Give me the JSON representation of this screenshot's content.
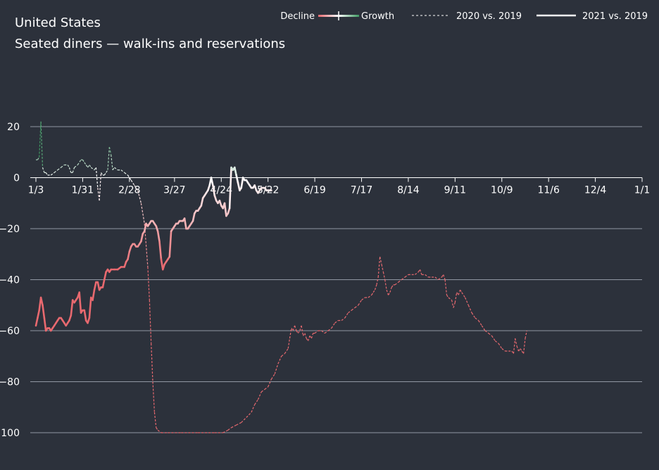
{
  "header": {
    "title": "United States",
    "subtitle": "Seated diners — walk-ins and reservations"
  },
  "legend": {
    "decline_label": "Decline",
    "growth_label": "Growth",
    "series_2020_label": "2020 vs. 2019",
    "series_2021_label": "2021 vs. 2019",
    "placement": "top-right"
  },
  "colors": {
    "background": "#2c313b",
    "grid": "#9097a3",
    "decline": "#e8696f",
    "neutral": "#ffffff",
    "growth": "#3e9a62"
  },
  "chart_data": {
    "type": "line",
    "title": "United States",
    "subtitle": "Seated diners — walk-ins and reservations",
    "xlabel": "",
    "ylabel": "",
    "x_unit": "day of year",
    "x_ticks": [
      {
        "label": "1/3",
        "day": 3
      },
      {
        "label": "1/31",
        "day": 31
      },
      {
        "label": "2/28",
        "day": 59
      },
      {
        "label": "3/27",
        "day": 86
      },
      {
        "label": "4/24",
        "day": 114
      },
      {
        "label": "5/22",
        "day": 142
      },
      {
        "label": "6/19",
        "day": 170
      },
      {
        "label": "7/17",
        "day": 198
      },
      {
        "label": "8/14",
        "day": 226
      },
      {
        "label": "9/11",
        "day": 254
      },
      {
        "label": "10/9",
        "day": 282
      },
      {
        "label": "11/6",
        "day": 310
      },
      {
        "label": "12/4",
        "day": 338
      },
      {
        "label": "1/1",
        "day": 366
      }
    ],
    "xlim": [
      3,
      366
    ],
    "y_ticks": [
      20,
      0,
      -20,
      -40,
      -60,
      -80,
      -100
    ],
    "ylim": [
      -100,
      20
    ],
    "grid": true,
    "color_scale": {
      "negative": "Decline",
      "positive": "Growth"
    },
    "series": [
      {
        "name": "2020 vs. 2019",
        "style": "dashed",
        "points": [
          [
            3,
            7
          ],
          [
            4,
            7
          ],
          [
            5,
            8
          ],
          [
            6,
            22
          ],
          [
            7,
            4
          ],
          [
            8,
            2
          ],
          [
            9,
            2
          ],
          [
            10,
            1
          ],
          [
            12,
            1
          ],
          [
            14,
            2
          ],
          [
            16,
            3
          ],
          [
            18,
            4
          ],
          [
            20,
            5
          ],
          [
            22,
            5
          ],
          [
            23,
            4
          ],
          [
            24,
            2
          ],
          [
            25,
            2
          ],
          [
            26,
            4
          ],
          [
            28,
            5
          ],
          [
            30,
            7
          ],
          [
            31,
            7
          ],
          [
            32,
            6
          ],
          [
            33,
            5
          ],
          [
            34,
            4
          ],
          [
            35,
            5
          ],
          [
            36,
            4
          ],
          [
            38,
            3
          ],
          [
            39,
            4
          ],
          [
            40,
            -4
          ],
          [
            41,
            -9
          ],
          [
            42,
            2
          ],
          [
            43,
            1
          ],
          [
            44,
            1
          ],
          [
            45,
            2
          ],
          [
            46,
            3
          ],
          [
            47,
            12
          ],
          [
            48,
            9
          ],
          [
            49,
            3
          ],
          [
            50,
            4
          ],
          [
            52,
            3
          ],
          [
            54,
            3
          ],
          [
            56,
            2
          ],
          [
            58,
            1
          ],
          [
            60,
            -1
          ],
          [
            62,
            -3
          ],
          [
            64,
            -5
          ],
          [
            66,
            -10
          ],
          [
            68,
            -18
          ],
          [
            70,
            -35
          ],
          [
            71,
            -48
          ],
          [
            72,
            -65
          ],
          [
            73,
            -80
          ],
          [
            74,
            -92
          ],
          [
            75,
            -98
          ],
          [
            76,
            -99
          ],
          [
            78,
            -100
          ],
          [
            82,
            -100
          ],
          [
            90,
            -100
          ],
          [
            100,
            -100
          ],
          [
            110,
            -100
          ],
          [
            115,
            -100
          ],
          [
            118,
            -99
          ],
          [
            120,
            -98
          ],
          [
            123,
            -97
          ],
          [
            126,
            -96
          ],
          [
            129,
            -94
          ],
          [
            132,
            -92
          ],
          [
            134,
            -89
          ],
          [
            136,
            -87
          ],
          [
            138,
            -84
          ],
          [
            140,
            -83
          ],
          [
            142,
            -82
          ],
          [
            144,
            -79
          ],
          [
            146,
            -77
          ],
          [
            148,
            -73
          ],
          [
            150,
            -70
          ],
          [
            152,
            -69
          ],
          [
            154,
            -67
          ],
          [
            155,
            -63
          ],
          [
            156,
            -59
          ],
          [
            157,
            -60
          ],
          [
            158,
            -58
          ],
          [
            159,
            -60
          ],
          [
            160,
            -61
          ],
          [
            161,
            -60
          ],
          [
            162,
            -58
          ],
          [
            163,
            -62
          ],
          [
            164,
            -61
          ],
          [
            165,
            -63
          ],
          [
            166,
            -64
          ],
          [
            167,
            -62
          ],
          [
            168,
            -63
          ],
          [
            169,
            -61
          ],
          [
            170,
            -61
          ],
          [
            172,
            -60
          ],
          [
            174,
            -60
          ],
          [
            176,
            -61
          ],
          [
            178,
            -60
          ],
          [
            180,
            -59
          ],
          [
            182,
            -57
          ],
          [
            184,
            -56
          ],
          [
            186,
            -56
          ],
          [
            188,
            -55
          ],
          [
            190,
            -53
          ],
          [
            192,
            -52
          ],
          [
            194,
            -51
          ],
          [
            196,
            -50
          ],
          [
            198,
            -48
          ],
          [
            200,
            -47
          ],
          [
            202,
            -47
          ],
          [
            204,
            -46
          ],
          [
            205,
            -45
          ],
          [
            206,
            -44
          ],
          [
            207,
            -42
          ],
          [
            208,
            -39
          ],
          [
            209,
            -31
          ],
          [
            210,
            -34
          ],
          [
            211,
            -37
          ],
          [
            212,
            -40
          ],
          [
            213,
            -44
          ],
          [
            214,
            -46
          ],
          [
            215,
            -45
          ],
          [
            216,
            -43
          ],
          [
            217,
            -42
          ],
          [
            218,
            -42
          ],
          [
            220,
            -41
          ],
          [
            222,
            -40
          ],
          [
            224,
            -39
          ],
          [
            226,
            -38
          ],
          [
            228,
            -38
          ],
          [
            230,
            -38
          ],
          [
            232,
            -37
          ],
          [
            233,
            -36
          ],
          [
            234,
            -38
          ],
          [
            236,
            -38
          ],
          [
            238,
            -39
          ],
          [
            240,
            -39
          ],
          [
            242,
            -39
          ],
          [
            244,
            -40
          ],
          [
            246,
            -39
          ],
          [
            247,
            -38
          ],
          [
            248,
            -40
          ],
          [
            249,
            -46
          ],
          [
            250,
            -47
          ],
          [
            252,
            -48
          ],
          [
            253,
            -51
          ],
          [
            254,
            -49
          ],
          [
            255,
            -45
          ],
          [
            256,
            -46
          ],
          [
            257,
            -44
          ],
          [
            258,
            -45
          ],
          [
            260,
            -47
          ],
          [
            262,
            -50
          ],
          [
            264,
            -53
          ],
          [
            266,
            -55
          ],
          [
            268,
            -56
          ],
          [
            270,
            -58
          ],
          [
            272,
            -60
          ],
          [
            274,
            -61
          ],
          [
            276,
            -62
          ],
          [
            278,
            -64
          ],
          [
            280,
            -65
          ],
          [
            282,
            -67
          ],
          [
            284,
            -68
          ],
          [
            286,
            -68
          ],
          [
            288,
            -68
          ],
          [
            289,
            -69
          ],
          [
            290,
            -63
          ],
          [
            291,
            -66
          ],
          [
            292,
            -68
          ],
          [
            293,
            -67
          ],
          [
            294,
            -68
          ],
          [
            295,
            -69
          ],
          [
            296,
            -63
          ],
          [
            297,
            -60
          ]
        ]
      },
      {
        "name": "2021 vs. 2019",
        "style": "solid",
        "points": [
          [
            3,
            -58
          ],
          [
            4,
            -55
          ],
          [
            5,
            -52
          ],
          [
            6,
            -47
          ],
          [
            7,
            -50
          ],
          [
            8,
            -55
          ],
          [
            9,
            -60
          ],
          [
            10,
            -59
          ],
          [
            11,
            -59
          ],
          [
            12,
            -60
          ],
          [
            13,
            -59
          ],
          [
            14,
            -58
          ],
          [
            15,
            -57
          ],
          [
            16,
            -56
          ],
          [
            17,
            -55
          ],
          [
            18,
            -55
          ],
          [
            19,
            -56
          ],
          [
            20,
            -57
          ],
          [
            21,
            -58
          ],
          [
            22,
            -57
          ],
          [
            23,
            -56
          ],
          [
            24,
            -54
          ],
          [
            25,
            -48
          ],
          [
            26,
            -49
          ],
          [
            27,
            -48
          ],
          [
            28,
            -47
          ],
          [
            29,
            -45
          ],
          [
            30,
            -53
          ],
          [
            31,
            -52
          ],
          [
            32,
            -52
          ],
          [
            33,
            -56
          ],
          [
            34,
            -57
          ],
          [
            35,
            -55
          ],
          [
            36,
            -47
          ],
          [
            37,
            -48
          ],
          [
            38,
            -44
          ],
          [
            39,
            -41
          ],
          [
            40,
            -41
          ],
          [
            41,
            -44
          ],
          [
            42,
            -43
          ],
          [
            43,
            -43
          ],
          [
            44,
            -40
          ],
          [
            45,
            -37
          ],
          [
            46,
            -36
          ],
          [
            47,
            -37
          ],
          [
            48,
            -36
          ],
          [
            50,
            -36
          ],
          [
            52,
            -36
          ],
          [
            54,
            -35
          ],
          [
            56,
            -35
          ],
          [
            57,
            -33
          ],
          [
            58,
            -32
          ],
          [
            59,
            -29
          ],
          [
            60,
            -27
          ],
          [
            61,
            -26
          ],
          [
            62,
            -26
          ],
          [
            63,
            -27
          ],
          [
            64,
            -27
          ],
          [
            65,
            -26
          ],
          [
            66,
            -25
          ],
          [
            67,
            -22
          ],
          [
            68,
            -21
          ],
          [
            69,
            -18
          ],
          [
            70,
            -19
          ],
          [
            71,
            -18
          ],
          [
            72,
            -17
          ],
          [
            73,
            -17
          ],
          [
            74,
            -18
          ],
          [
            75,
            -19
          ],
          [
            76,
            -21
          ],
          [
            77,
            -25
          ],
          [
            78,
            -32
          ],
          [
            79,
            -36
          ],
          [
            80,
            -34
          ],
          [
            81,
            -33
          ],
          [
            82,
            -32
          ],
          [
            83,
            -31
          ],
          [
            84,
            -21
          ],
          [
            85,
            -20
          ],
          [
            86,
            -19
          ],
          [
            87,
            -18
          ],
          [
            88,
            -18
          ],
          [
            89,
            -17
          ],
          [
            90,
            -17
          ],
          [
            91,
            -17
          ],
          [
            92,
            -16
          ],
          [
            93,
            -20
          ],
          [
            94,
            -20
          ],
          [
            95,
            -19
          ],
          [
            96,
            -18
          ],
          [
            97,
            -17
          ],
          [
            98,
            -14
          ],
          [
            99,
            -13
          ],
          [
            100,
            -13
          ],
          [
            101,
            -12
          ],
          [
            102,
            -11
          ],
          [
            103,
            -8
          ],
          [
            104,
            -7
          ],
          [
            105,
            -6
          ],
          [
            106,
            -5
          ],
          [
            107,
            -3
          ],
          [
            108,
            0
          ],
          [
            109,
            -3
          ],
          [
            110,
            -7
          ],
          [
            111,
            -9
          ],
          [
            112,
            -10
          ],
          [
            113,
            -9
          ],
          [
            114,
            -11
          ],
          [
            115,
            -12
          ],
          [
            116,
            -10
          ],
          [
            117,
            -15
          ],
          [
            118,
            -14
          ],
          [
            119,
            -12
          ],
          [
            120,
            4
          ],
          [
            121,
            3
          ],
          [
            122,
            4
          ],
          [
            123,
            1
          ],
          [
            124,
            -2
          ],
          [
            125,
            -5
          ],
          [
            126,
            -4
          ],
          [
            127,
            0
          ],
          [
            128,
            -1
          ],
          [
            129,
            -1
          ],
          [
            130,
            -2
          ],
          [
            131,
            -3
          ],
          [
            132,
            -4
          ],
          [
            133,
            -4
          ],
          [
            134,
            -3
          ],
          [
            135,
            -5
          ],
          [
            136,
            -6
          ],
          [
            137,
            -5
          ],
          [
            138,
            -4
          ],
          [
            139,
            -4
          ],
          [
            140,
            -4
          ],
          [
            141,
            -5
          ],
          [
            142,
            -5
          ],
          [
            143,
            -5
          ],
          [
            144,
            -5
          ]
        ]
      }
    ]
  }
}
